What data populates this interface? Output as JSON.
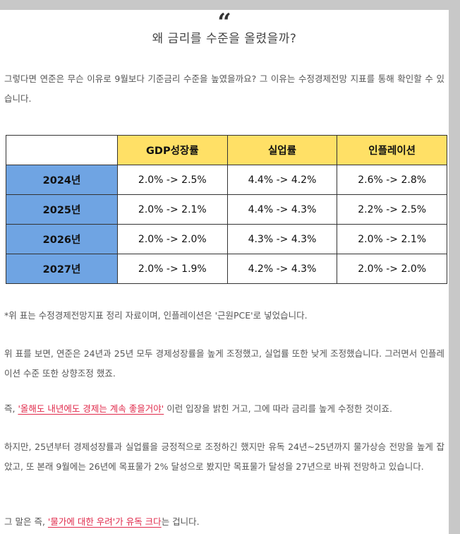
{
  "quote": {
    "mark": "“",
    "title": "왜 금리를 수준을 올렸을까?"
  },
  "paragraphs": {
    "intro": "그렇다면 연준은 무슨 이유로 9월보다 기준금리 수준을 높였을까요? 그 이유는 수정경제전망 지표를 통해 확인할 수 있습니다.",
    "note": "*위 표는 수정경제전망지표 정리 자료이며, 인플레이션은 '근원PCE'로 넣었습니다.",
    "p2": "위 표를 보면, 연준은 24년과 25년 모두 경제성장률을 높게 조정했고, 실업률 또한 낮게 조정했습니다. 그러면서 인플레이션 수준 또한 상향조정 했죠.",
    "p3_before": "즉, ",
    "p3_highlight": "'올해도 내년에도 경제는 계속 좋을거야'",
    "p3_after": " 이런 입장을 밝힌 거고, 그에 따라 금리를 높게 수정한 것이죠.",
    "p4": "하지만, 25년부터 경제성장률과 실업률을 긍정적으로 조정하긴 했지만 유독 24년~25년까지 물가상승 전망을 높게 잡았고, 또 본래 9월에는 26년에 목표물가 2% 달성으로 봤지만 목표물가 달성을 27년으로 바꿔 전망하고 있습니다.",
    "p5_before": "그 말은 즉, ",
    "p5_highlight": "'물가에 대한 우려'가 유독 크다",
    "p5_after": "는 겁니다."
  },
  "table": {
    "columns": [
      "GDP성장률",
      "실업률",
      "인플레이션"
    ],
    "rows": [
      {
        "year": "2024년",
        "gdp": "2.0% -> 2.5%",
        "unemployment": "4.4% -> 4.2%",
        "inflation": "2.6% -> 2.8%"
      },
      {
        "year": "2025년",
        "gdp": "2.0% -> 2.1%",
        "unemployment": "4.4% -> 4.3%",
        "inflation": "2.2% -> 2.5%"
      },
      {
        "year": "2026년",
        "gdp": "2.0% -> 2.0%",
        "unemployment": "4.3% -> 4.3%",
        "inflation": "2.0% -> 2.1%"
      },
      {
        "year": "2027년",
        "gdp": "2.0% -> 1.9%",
        "unemployment": "4.2% -> 4.3%",
        "inflation": "2.0% -> 2.0%"
      }
    ]
  },
  "colors": {
    "header_yellow": "#ffe066",
    "row_blue": "#6fa4e3",
    "highlight_red": "#e0294a",
    "background_gray": "#c8c8c8"
  }
}
